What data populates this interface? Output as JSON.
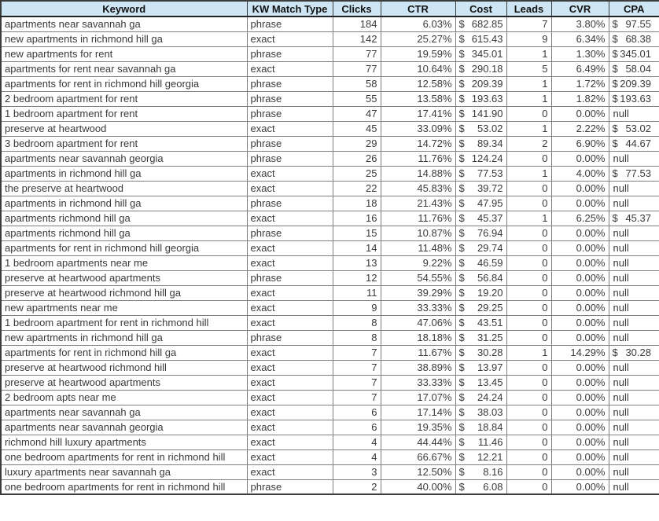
{
  "table": {
    "title": "keyword-performance-report",
    "currency_symbol": "$",
    "null_label": "null",
    "colors": {
      "header_bg": "#cee6f3",
      "grid_line": "#7f7f7f",
      "outer_border": "#3c3c3c",
      "text": "#3a3a3a"
    },
    "columns": [
      {
        "label": "Keyword",
        "slug": "keyword",
        "align": "left"
      },
      {
        "label": "KW Match Type",
        "slug": "match-type",
        "align": "left"
      },
      {
        "label": "Clicks",
        "slug": "clicks",
        "align": "right"
      },
      {
        "label": "CTR",
        "slug": "ctr",
        "align": "right"
      },
      {
        "label": "Cost",
        "slug": "cost",
        "align": "accounting-cost"
      },
      {
        "label": "Leads",
        "slug": "leads",
        "align": "right"
      },
      {
        "label": "CVR",
        "slug": "cvr",
        "align": "right"
      },
      {
        "label": "CPA",
        "slug": "cpa",
        "align": "accounting-cpa"
      }
    ],
    "rows": [
      [
        "apartments near savannah ga",
        "phrase",
        "184",
        "6.03%",
        "682.85",
        "7",
        "3.80%",
        "97.55"
      ],
      [
        "new apartments in richmond hill ga",
        "exact",
        "142",
        "25.27%",
        "615.43",
        "9",
        "6.34%",
        "68.38"
      ],
      [
        "new apartments for rent",
        "phrase",
        "77",
        "19.59%",
        "345.01",
        "1",
        "1.30%",
        "345.01"
      ],
      [
        "apartments for rent near savannah ga",
        "exact",
        "77",
        "10.64%",
        "290.18",
        "5",
        "6.49%",
        "58.04"
      ],
      [
        "apartments for rent in richmond hill georgia",
        "phrase",
        "58",
        "12.58%",
        "209.39",
        "1",
        "1.72%",
        "209.39"
      ],
      [
        "2 bedroom apartment for rent",
        "phrase",
        "55",
        "13.58%",
        "193.63",
        "1",
        "1.82%",
        "193.63"
      ],
      [
        "1 bedroom apartment for rent",
        "phrase",
        "47",
        "17.41%",
        "141.90",
        "0",
        "0.00%",
        "null"
      ],
      [
        "preserve at heartwood",
        "exact",
        "45",
        "33.09%",
        "53.02",
        "1",
        "2.22%",
        "53.02"
      ],
      [
        "3 bedroom apartment for rent",
        "phrase",
        "29",
        "14.72%",
        "89.34",
        "2",
        "6.90%",
        "44.67"
      ],
      [
        "apartments near savannah georgia",
        "phrase",
        "26",
        "11.76%",
        "124.24",
        "0",
        "0.00%",
        "null"
      ],
      [
        "apartments in richmond hill ga",
        "exact",
        "25",
        "14.88%",
        "77.53",
        "1",
        "4.00%",
        "77.53"
      ],
      [
        "the preserve at heartwood",
        "exact",
        "22",
        "45.83%",
        "39.72",
        "0",
        "0.00%",
        "null"
      ],
      [
        "apartments in richmond hill ga",
        "phrase",
        "18",
        "21.43%",
        "47.95",
        "0",
        "0.00%",
        "null"
      ],
      [
        "apartments richmond hill ga",
        "exact",
        "16",
        "11.76%",
        "45.37",
        "1",
        "6.25%",
        "45.37"
      ],
      [
        "apartments richmond hill ga",
        "phrase",
        "15",
        "10.87%",
        "76.94",
        "0",
        "0.00%",
        "null"
      ],
      [
        "apartments for rent in richmond hill georgia",
        "exact",
        "14",
        "11.48%",
        "29.74",
        "0",
        "0.00%",
        "null"
      ],
      [
        "1 bedroom apartments near me",
        "exact",
        "13",
        "9.22%",
        "46.59",
        "0",
        "0.00%",
        "null"
      ],
      [
        "preserve at heartwood apartments",
        "phrase",
        "12",
        "54.55%",
        "56.84",
        "0",
        "0.00%",
        "null"
      ],
      [
        "preserve at heartwood richmond hill ga",
        "exact",
        "11",
        "39.29%",
        "19.20",
        "0",
        "0.00%",
        "null"
      ],
      [
        "new apartments near me",
        "exact",
        "9",
        "33.33%",
        "29.25",
        "0",
        "0.00%",
        "null"
      ],
      [
        "1 bedroom apartment for rent in richmond hill",
        "exact",
        "8",
        "47.06%",
        "43.51",
        "0",
        "0.00%",
        "null"
      ],
      [
        "new apartments in richmond hill ga",
        "phrase",
        "8",
        "18.18%",
        "31.25",
        "0",
        "0.00%",
        "null"
      ],
      [
        "apartments for rent in richmond hill ga",
        "exact",
        "7",
        "11.67%",
        "30.28",
        "1",
        "14.29%",
        "30.28"
      ],
      [
        "preserve at heartwood richmond hill",
        "exact",
        "7",
        "38.89%",
        "13.97",
        "0",
        "0.00%",
        "null"
      ],
      [
        "preserve at heartwood apartments",
        "exact",
        "7",
        "33.33%",
        "13.45",
        "0",
        "0.00%",
        "null"
      ],
      [
        "2 bedroom apts near me",
        "exact",
        "7",
        "17.07%",
        "24.24",
        "0",
        "0.00%",
        "null"
      ],
      [
        "apartments near savannah ga",
        "exact",
        "6",
        "17.14%",
        "38.03",
        "0",
        "0.00%",
        "null"
      ],
      [
        "apartments near savannah georgia",
        "exact",
        "6",
        "19.35%",
        "18.84",
        "0",
        "0.00%",
        "null"
      ],
      [
        "richmond hill luxury apartments",
        "exact",
        "4",
        "44.44%",
        "11.46",
        "0",
        "0.00%",
        "null"
      ],
      [
        "one bedroom apartments for rent in richmond hill",
        "exact",
        "4",
        "66.67%",
        "12.21",
        "0",
        "0.00%",
        "null"
      ],
      [
        "luxury apartments near savannah ga",
        "exact",
        "3",
        "12.50%",
        "8.16",
        "0",
        "0.00%",
        "null"
      ],
      [
        "one bedroom apartments for rent in richmond hill",
        "phrase",
        "2",
        "40.00%",
        "6.08",
        "0",
        "0.00%",
        "null"
      ]
    ]
  }
}
